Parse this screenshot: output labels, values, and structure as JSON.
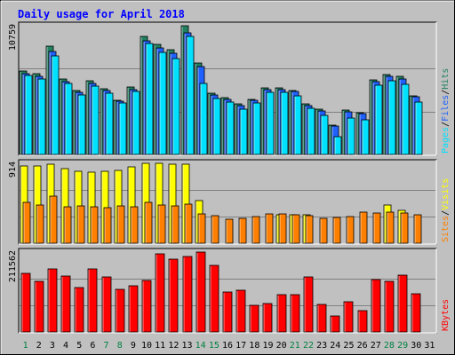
{
  "chart_data": {
    "type": "bar",
    "title": "Daily usage for April 2018",
    "categories": [
      "1",
      "2",
      "3",
      "4",
      "5",
      "6",
      "7",
      "8",
      "9",
      "10",
      "11",
      "12",
      "13",
      "14",
      "15",
      "16",
      "17",
      "18",
      "19",
      "20",
      "21",
      "22",
      "23",
      "24",
      "25",
      "26",
      "27",
      "28",
      "29",
      "30",
      "31"
    ],
    "weekend_days": [
      1,
      7,
      8,
      14,
      15,
      21,
      22,
      28,
      29
    ],
    "panels": [
      {
        "id": "traffic",
        "max_label": "10759",
        "max": 10759,
        "side_label": [
          "Pages",
          "Files",
          "Hits"
        ],
        "side_colors": [
          "#00e0ff",
          "#2060ff",
          "#208060"
        ],
        "series": [
          {
            "name": "Hits",
            "color": "#208060",
            "values": [
              6980,
              6720,
              9030,
              6300,
              5320,
              6130,
              5480,
              4560,
              5650,
              9890,
              9180,
              8780,
              10759,
              7610,
              5100,
              4730,
              4210,
              4620,
              5580,
              5580,
              5360,
              4210,
              3750,
              2470,
              3680,
              3480,
              6230,
              6690,
              6500,
              4910,
              null
            ]
          },
          {
            "name": "Files",
            "color": "#2060ff",
            "values": [
              6780,
              6530,
              8640,
              6100,
              5190,
              5970,
              5310,
              4460,
              5450,
              9530,
              8880,
              8470,
              10190,
              7350,
              4980,
              4620,
              4110,
              4490,
              5420,
              5420,
              5250,
              4090,
              3640,
              2370,
              3570,
              3380,
              6050,
              6520,
              6300,
              4790,
              null
            ]
          },
          {
            "name": "Pages",
            "color": "#00e0ff",
            "values": [
              6580,
              6330,
              8250,
              5920,
              4950,
              5730,
              5090,
              4290,
              5250,
              9250,
              8520,
              8050,
              9850,
              5950,
              4640,
              4380,
              3750,
              4290,
              5180,
              5200,
              4930,
              3830,
              3250,
              1490,
              3060,
              2900,
              5800,
              6190,
              5890,
              4370,
              null
            ]
          }
        ]
      },
      {
        "id": "sites",
        "max_label": "914",
        "max": 914,
        "side_label": [
          "Sites",
          "Visits"
        ],
        "side_colors": [
          "#ff8000",
          "#ffff00"
        ],
        "series": [
          {
            "name": "Visits",
            "color": "#ffff00",
            "values": [
              880,
              880,
              900,
              850,
              820,
              810,
              820,
              830,
              870,
              914,
              914,
              900,
              900,
              490,
              null,
              null,
              null,
              null,
              null,
              330,
              330,
              330,
              null,
              null,
              null,
              null,
              null,
              440,
              380,
              null,
              null
            ]
          },
          {
            "name": "Sites",
            "color": "#ff8000",
            "values": [
              470,
              440,
              540,
              420,
              430,
              420,
              410,
              430,
              420,
              470,
              440,
              430,
              450,
              340,
              310,
              270,
              280,
              300,
              340,
              340,
              320,
              310,
              280,
              290,
              300,
              360,
              350,
              360,
              350,
              320,
              null
            ]
          }
        ]
      },
      {
        "id": "kbytes",
        "max_label": "211562",
        "max": 211562,
        "side_label": [
          "KBytes"
        ],
        "side_colors": [
          "#ff0000"
        ],
        "series": [
          {
            "name": "KBytes",
            "color": "#ff0000",
            "values": [
              154000,
              133000,
              168000,
              148000,
              118000,
              168000,
              146000,
              112000,
              123000,
              136000,
              207000,
              192000,
              200000,
              211562,
              176000,
              105000,
              110000,
              71000,
              76000,
              98000,
              98000,
              146000,
              72000,
              42000,
              80000,
              57000,
              138000,
              133000,
              150000,
              100000,
              null
            ]
          }
        ]
      }
    ],
    "xlabel": "",
    "ylabel": ""
  }
}
